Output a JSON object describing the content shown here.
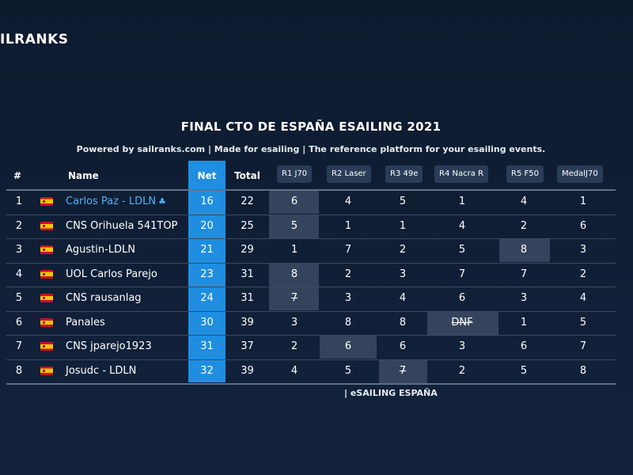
{
  "app": {
    "logo": "ILRANKS"
  },
  "header": {
    "title": "FINAL CTO DE ESPAÑA ESAILING 2021",
    "subtitle": "Powered by sailranks.com | Made for esailing | The reference platform for your esailing events."
  },
  "table": {
    "columns": {
      "rank": "#",
      "name": "Name",
      "net": "Net",
      "total": "Total",
      "races": [
        "R1 J70",
        "R2 Laser",
        "R3 49e",
        "R4 Nacra R",
        "R5 F50",
        "MedalJ70"
      ]
    },
    "rows": [
      {
        "rank": "1",
        "name": "Carlos Paz - LDLN",
        "net": "16",
        "total": "22",
        "races": [
          "6",
          "4",
          "5",
          "1",
          "4",
          "1"
        ],
        "discard": 0,
        "highlight": true,
        "icon": "clover-icon"
      },
      {
        "rank": "2",
        "name": "CNS Orihuela 541TOP",
        "net": "20",
        "total": "25",
        "races": [
          "5",
          "1",
          "1",
          "4",
          "2",
          "6"
        ],
        "discard": 0
      },
      {
        "rank": "3",
        "name": "Agustin-LDLN",
        "net": "21",
        "total": "29",
        "races": [
          "1",
          "7",
          "2",
          "5",
          "8",
          "3"
        ],
        "discard": 4
      },
      {
        "rank": "4",
        "name": "UOL Carlos Parejo",
        "net": "23",
        "total": "31",
        "races": [
          "8",
          "2",
          "3",
          "7",
          "7",
          "2"
        ],
        "discard": 0
      },
      {
        "rank": "5",
        "name": "CNS rausanlag",
        "net": "24",
        "total": "31",
        "races": [
          "7",
          "3",
          "4",
          "6",
          "3",
          "4"
        ],
        "discard": 0,
        "strike": true
      },
      {
        "rank": "6",
        "name": "Panales",
        "net": "30",
        "total": "39",
        "races": [
          "3",
          "8",
          "8",
          "DNF",
          "1",
          "5"
        ],
        "discard": 3,
        "strike": true
      },
      {
        "rank": "7",
        "name": "CNS jparejo1923",
        "net": "31",
        "total": "37",
        "races": [
          "2",
          "6",
          "6",
          "3",
          "6",
          "7"
        ],
        "discard": 1
      },
      {
        "rank": "8",
        "name": "Josudc - LDLN",
        "net": "32",
        "total": "39",
        "races": [
          "4",
          "5",
          "7",
          "2",
          "5",
          "8"
        ],
        "discard": 2,
        "strike": true
      }
    ]
  },
  "footer": {
    "text": "| eSAILING ESPAÑA"
  },
  "colors": {
    "accent": "#1f8ee0",
    "background": "#0f1d33",
    "discard": "#35445c",
    "highlight_name": "#4fb2f5"
  }
}
